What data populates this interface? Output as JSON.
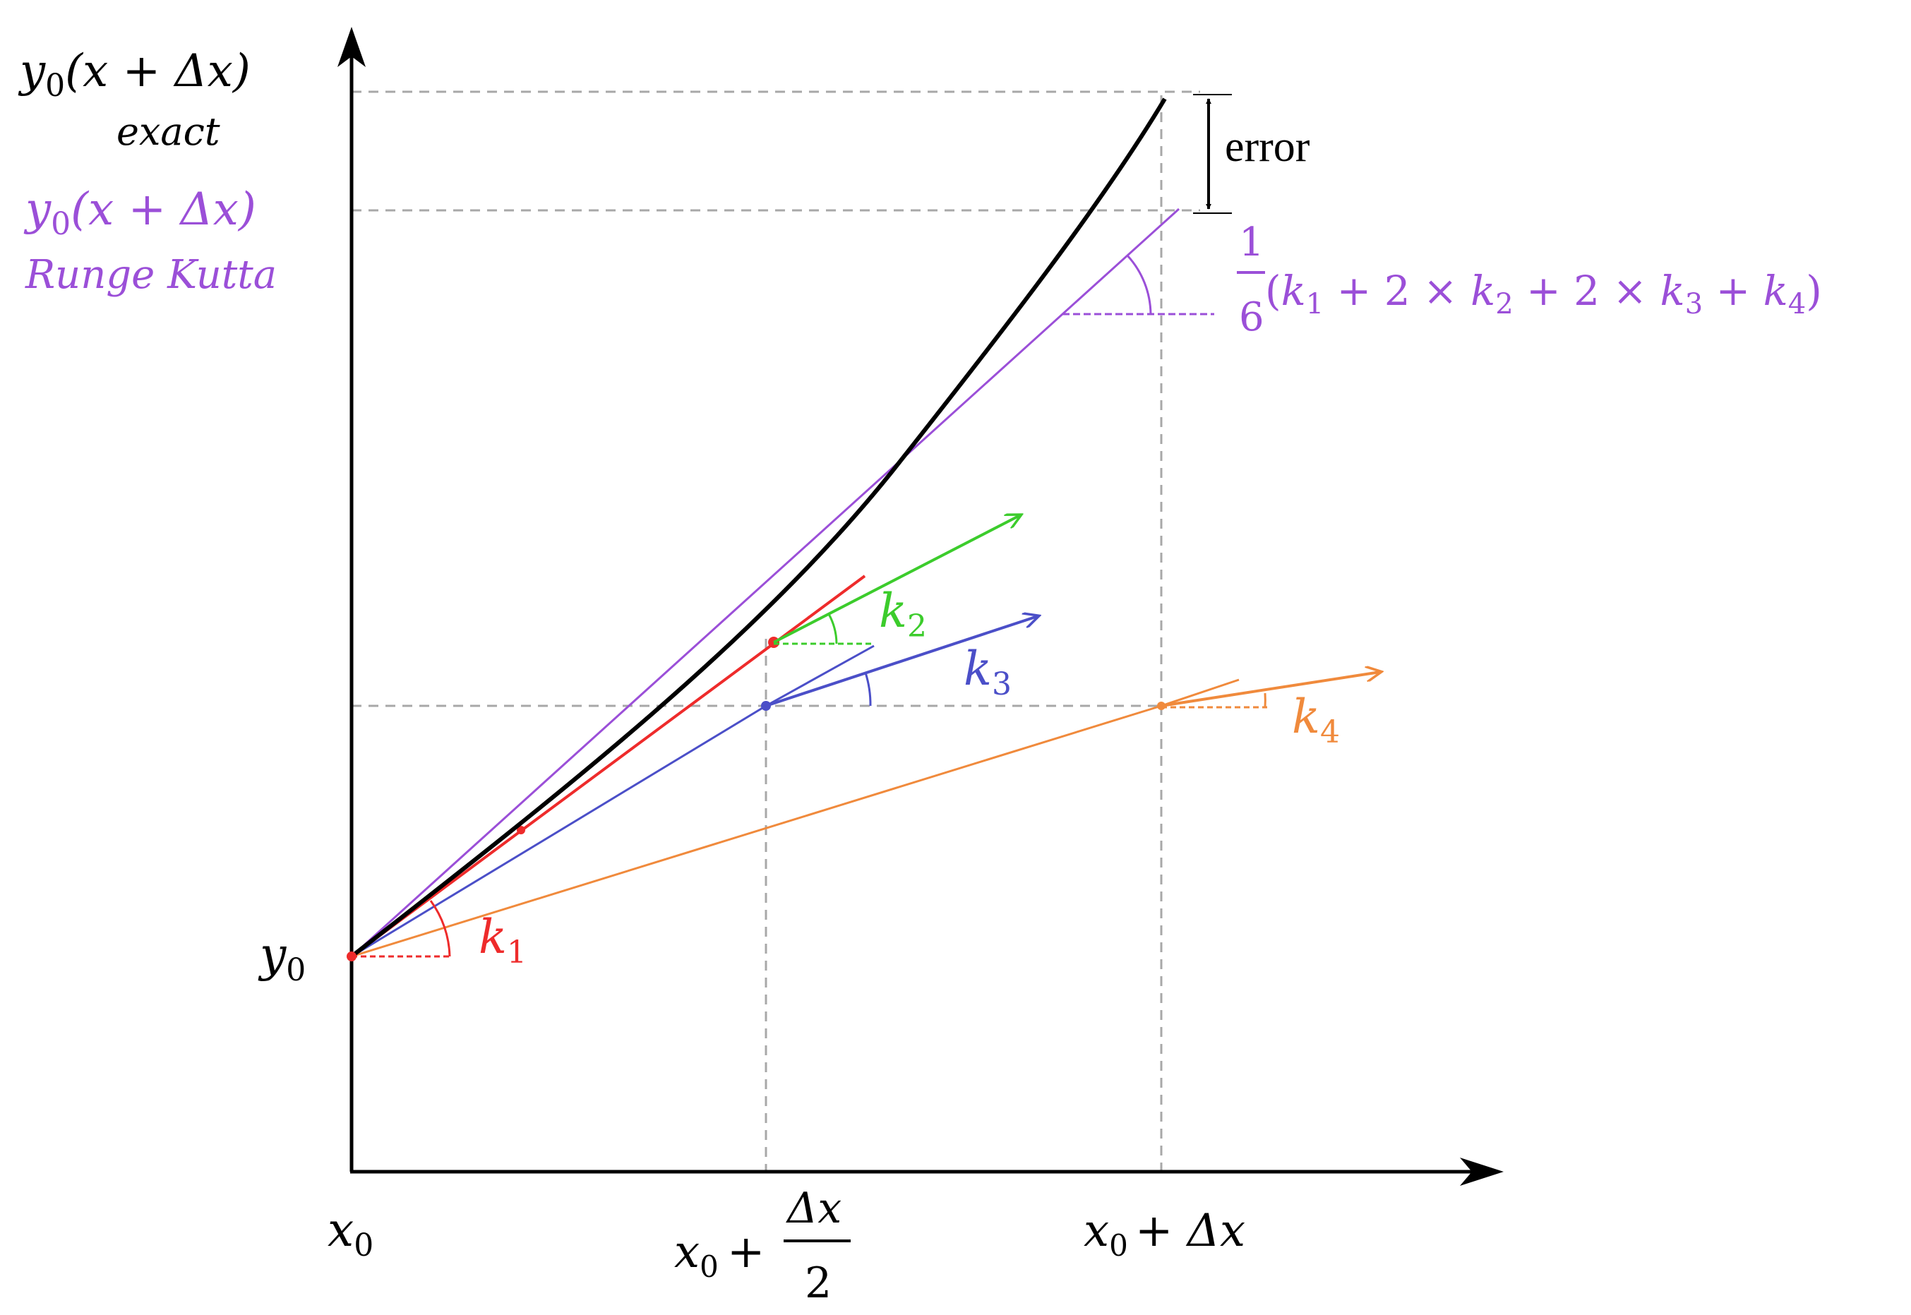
{
  "colors": {
    "axis": "#000000",
    "exact": "#000000",
    "runge_kutta": "#9b4fd8",
    "k1": "#ee2b2b",
    "k2": "#3ccc2c",
    "k3": "#4b4fc8",
    "k4": "#f08a3c",
    "guide": "#a8a8a8"
  },
  "y_axis": {
    "exact_value": {
      "base": "y",
      "sub": "0",
      "arg": "(x + Δx)"
    },
    "exact_caption": "exact",
    "rk_value": {
      "base": "y",
      "sub": "0",
      "arg": "(x + Δx)"
    },
    "rk_caption": "Runge Kutta",
    "y0": {
      "base": "y",
      "sub": "0"
    }
  },
  "x_axis": {
    "x0": {
      "base": "x",
      "sub": "0"
    },
    "mid": {
      "base": "x",
      "sub": "0",
      "plus": "+",
      "num": "Δx",
      "den": "2"
    },
    "end": {
      "base": "x",
      "sub": "0",
      "tail": "+ Δx"
    }
  },
  "labels": {
    "error": "error",
    "rk_formula": {
      "num": "1",
      "den": "6",
      "open": "(",
      "t1": "k",
      "t1s": "1",
      "op1": " + 2 × ",
      "t2": "k",
      "t2s": "2",
      "op2": " + 2 × ",
      "t3": "k",
      "t3s": "3",
      "op3": " + ",
      "t4": "k",
      "t4s": "4",
      "close": ")"
    },
    "k1": {
      "base": "k",
      "sub": "1"
    },
    "k2": {
      "base": "k",
      "sub": "2"
    },
    "k3": {
      "base": "k",
      "sub": "3"
    },
    "k4": {
      "base": "k",
      "sub": "4"
    }
  }
}
